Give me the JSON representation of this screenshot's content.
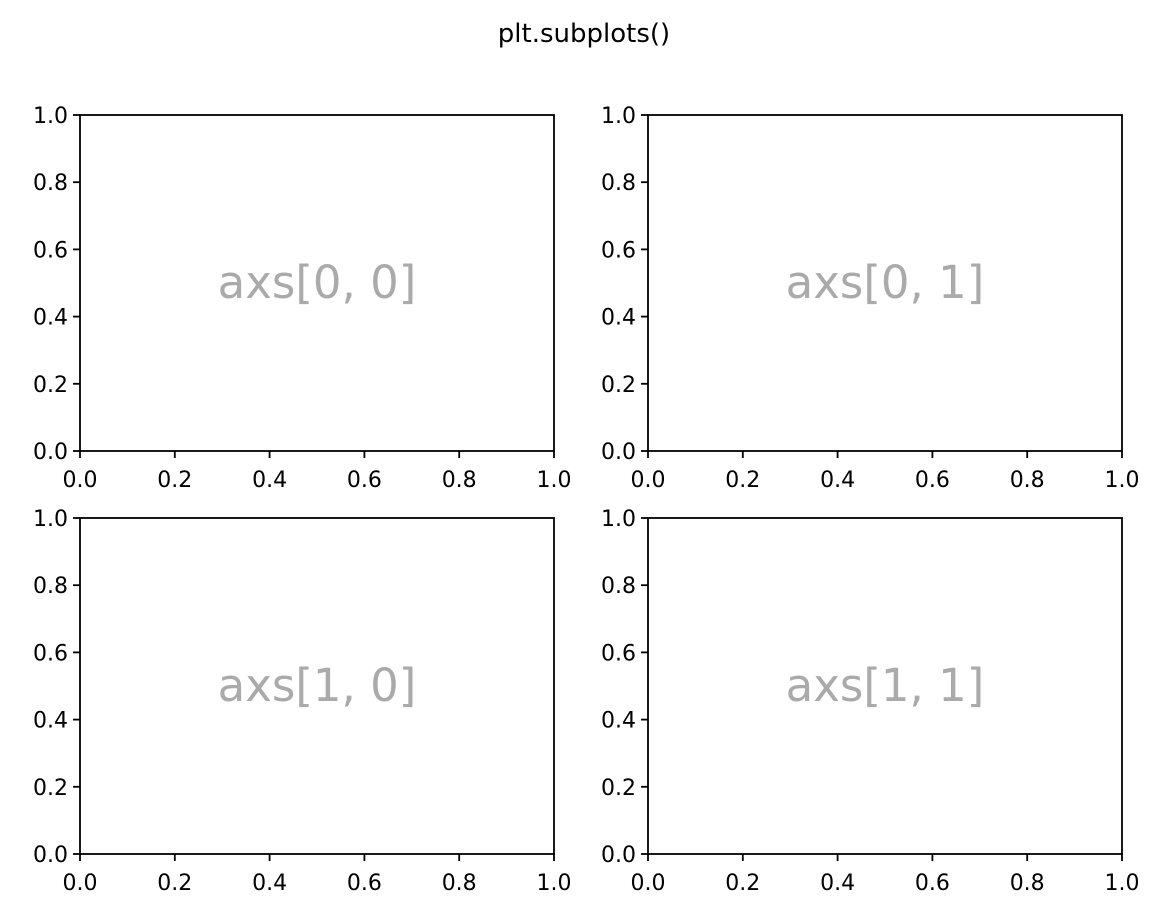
{
  "figure": {
    "suptitle": "plt.subplots()",
    "label_color": "#aaaaaa"
  },
  "chart_data": [
    {
      "type": "scatter",
      "annotation": "axs[0, 0]",
      "xlim": [
        0.0,
        1.0
      ],
      "ylim": [
        0.0,
        1.0
      ],
      "xticks": [
        "0.0",
        "0.2",
        "0.4",
        "0.6",
        "0.8",
        "1.0"
      ],
      "yticks": [
        "0.0",
        "0.2",
        "0.4",
        "0.6",
        "0.8",
        "1.0"
      ],
      "series": [],
      "grid": false
    },
    {
      "type": "scatter",
      "annotation": "axs[0, 1]",
      "xlim": [
        0.0,
        1.0
      ],
      "ylim": [
        0.0,
        1.0
      ],
      "xticks": [
        "0.0",
        "0.2",
        "0.4",
        "0.6",
        "0.8",
        "1.0"
      ],
      "yticks": [
        "0.0",
        "0.2",
        "0.4",
        "0.6",
        "0.8",
        "1.0"
      ],
      "series": [],
      "grid": false
    },
    {
      "type": "scatter",
      "annotation": "axs[1, 0]",
      "xlim": [
        0.0,
        1.0
      ],
      "ylim": [
        0.0,
        1.0
      ],
      "xticks": [
        "0.0",
        "0.2",
        "0.4",
        "0.6",
        "0.8",
        "1.0"
      ],
      "yticks": [
        "0.0",
        "0.2",
        "0.4",
        "0.6",
        "0.8",
        "1.0"
      ],
      "series": [],
      "grid": false
    },
    {
      "type": "scatter",
      "annotation": "axs[1, 1]",
      "xlim": [
        0.0,
        1.0
      ],
      "ylim": [
        0.0,
        1.0
      ],
      "xticks": [
        "0.0",
        "0.2",
        "0.4",
        "0.6",
        "0.8",
        "1.0"
      ],
      "yticks": [
        "0.0",
        "0.2",
        "0.4",
        "0.6",
        "0.8",
        "1.0"
      ],
      "series": [],
      "grid": false
    }
  ]
}
